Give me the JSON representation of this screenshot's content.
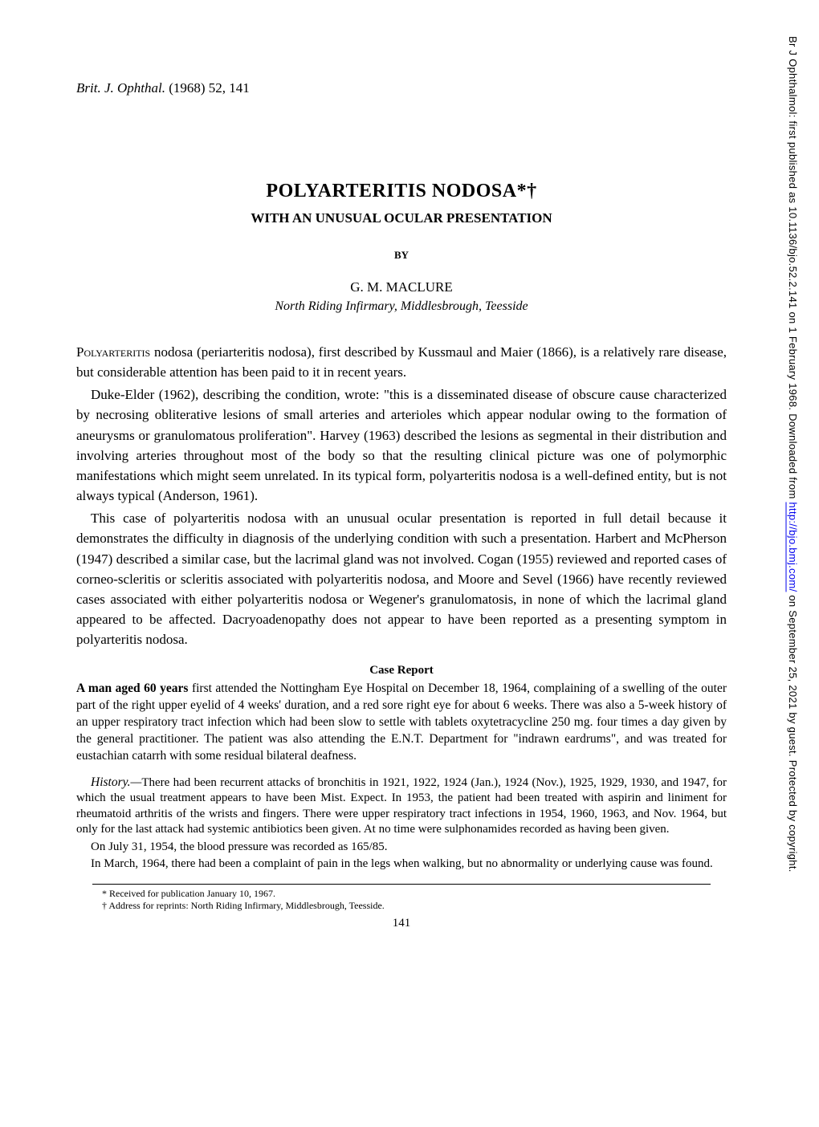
{
  "sidebar": {
    "prefix": "Br J Ophthalmol: first published as 10.1136/bjo.52.2.141 on 1 February 1968. Downloaded from ",
    "link_text": "http://bjo.bmj.com/",
    "suffix": " on September 25, 2021 by guest. Protected by copyright."
  },
  "citation": {
    "journal_abbrev": "Brit. J. Ophthal.",
    "year_vol_page": " (1968) 52, 141"
  },
  "header": {
    "title": "POLYARTERITIS NODOSA*†",
    "subtitle": "WITH AN UNUSUAL OCULAR PRESENTATION",
    "by": "BY",
    "author": "G. M. MACLURE",
    "affiliation": "North Riding Infirmary, Middlesbrough, Teesside"
  },
  "body": {
    "para1_smallcaps": "Polyarteritis",
    "para1_rest": " nodosa (periarteritis nodosa), first described by Kussmaul and Maier (1866), is a relatively rare disease, but considerable attention has been paid to it in recent years.",
    "para2": "Duke-Elder (1962), describing the condition, wrote: \"this is a disseminated disease of obscure cause characterized by necrosing obliterative lesions of small arteries and arterioles which appear nodular owing to the formation of aneurysms or granulomatous proliferation\". Harvey (1963) described the lesions as segmental in their distribution and involving arteries throughout most of the body so that the resulting clinical picture was one of polymorphic manifestations which might seem unrelated. In its typical form, polyarteritis nodosa is a well-defined entity, but is not always typical (Anderson, 1961).",
    "para3": "This case of polyarteritis nodosa with an unusual ocular presentation is reported in full detail because it demonstrates the difficulty in diagnosis of the underlying condition with such a presentation. Harbert and McPherson (1947) described a similar case, but the lacrimal gland was not involved. Cogan (1955) reviewed and reported cases of corneo-scleritis or scleritis associated with polyarteritis nodosa, and Moore and Sevel (1966) have recently reviewed cases associated with either polyarteritis nodosa or Wegener's granulomatosis, in none of which the lacrimal gland appeared to be affected. Dacryoadenopathy does not appear to have been reported as a presenting symptom in polyarteritis nodosa."
  },
  "case": {
    "heading": "Case Report",
    "para1": "A man aged 60 years first attended the Nottingham Eye Hospital on December 18, 1964, complaining of a swelling of the outer part of the right upper eyelid of 4 weeks' duration, and a red sore right eye for about 6 weeks. There was also a 5-week history of an upper respiratory tract infection which had been slow to settle with tablets oxytetracycline 250 mg. four times a day given by the general practitioner. The patient was also attending the E.N.T. Department for \"indrawn eardrums\", and was treated for eustachian catarrh with some residual bilateral deafness.",
    "history_label": "History.—",
    "history_text": "There had been recurrent attacks of bronchitis in 1921, 1922, 1924 (Jan.), 1924 (Nov.), 1925, 1929, 1930, and 1947, for which the usual treatment appears to have been Mist. Expect. In 1953, the patient had been treated with aspirin and liniment for rheumatoid arthritis of the wrists and fingers. There were upper respiratory tract infections in 1954, 1960, 1963, and Nov. 1964, but only for the last attack had systemic antibiotics been given. At no time were sulphonamides recorded as having been given.",
    "history_p2": "On July 31, 1954, the blood pressure was recorded as 165/85.",
    "history_p3": "In March, 1964, there had been a complaint of pain in the legs when walking, but no abnormality or underlying cause was found."
  },
  "footnotes": {
    "f1": "* Received for publication January 10, 1967.",
    "f2": "† Address for reprints: North Riding Infirmary, Middlesbrough, Teesside."
  },
  "page_number": "141",
  "colors": {
    "text": "#000000",
    "background": "#ffffff",
    "link": "#0000ee"
  },
  "typography": {
    "body_fontsize": 17,
    "case_fontsize": 15.5,
    "history_fontsize": 15,
    "footnote_fontsize": 12,
    "title_fontsize": 24
  }
}
